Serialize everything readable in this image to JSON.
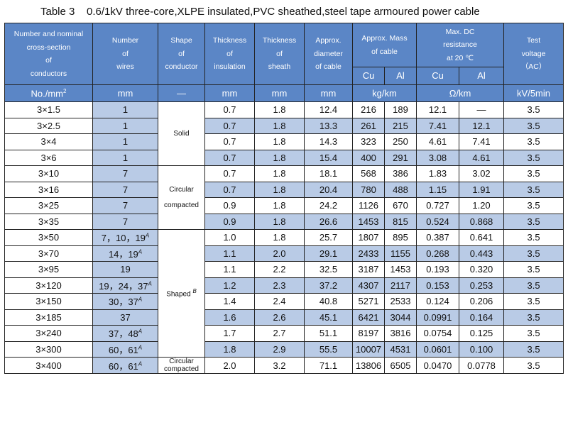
{
  "title": "Table 3    0.6/1kV three-core,XLPE insulated,PVC sheathed,steel tape armoured power cable",
  "headers": {
    "col1": "Number and nominal\ncross-section\nof\nconductors",
    "col2": "Number\nof\nwires",
    "col3": "Shape\nof\nconductor",
    "col4": "Thickness\nof\ninsulation",
    "col5": "Thickness\nof\nsheath",
    "col6": "Approx.\ndiameter\nof cable",
    "col7": "Approx. Mass\nof cable",
    "col8": "Max. DC\nresistance\nat 20 ℃",
    "col9": "Test\nvoltage\n（AC）",
    "cu": "Cu",
    "al": "Al",
    "cu2": "Cu",
    "al2": "Al"
  },
  "units": {
    "u1": "No./mm²",
    "u2": "mm",
    "u3": "—",
    "u4": "mm",
    "u5": "mm",
    "u6": "mm",
    "u7": "kg/km",
    "u8": "Ω/km",
    "u9": "kV/5min"
  },
  "shapes": {
    "solid": "Solid",
    "circular": "Circular\ncompacted",
    "shaped": "Shaped ",
    "shaped_sup": "B",
    "circular2": "Circular\ncompacted"
  },
  "rows": [
    {
      "size": "3×1.5",
      "wires": "1",
      "wsup": "",
      "ins": "0.7",
      "sheath": "1.8",
      "dia": "12.4",
      "cu": "216",
      "al": "189",
      "rcu": "12.1",
      "ral": "—",
      "v": "3.5"
    },
    {
      "size": "3×2.5",
      "wires": "1",
      "wsup": "",
      "ins": "0.7",
      "sheath": "1.8",
      "dia": "13.3",
      "cu": "261",
      "al": "215",
      "rcu": "7.41",
      "ral": "12.1",
      "v": "3.5"
    },
    {
      "size": "3×4",
      "wires": "1",
      "wsup": "",
      "ins": "0.7",
      "sheath": "1.8",
      "dia": "14.3",
      "cu": "323",
      "al": "250",
      "rcu": "4.61",
      "ral": "7.41",
      "v": "3.5"
    },
    {
      "size": "3×6",
      "wires": "1",
      "wsup": "",
      "ins": "0.7",
      "sheath": "1.8",
      "dia": "15.4",
      "cu": "400",
      "al": "291",
      "rcu": "3.08",
      "ral": "4.61",
      "v": "3.5"
    },
    {
      "size": "3×10",
      "wires": "7",
      "wsup": "",
      "ins": "0.7",
      "sheath": "1.8",
      "dia": "18.1",
      "cu": "568",
      "al": "386",
      "rcu": "1.83",
      "ral": "3.02",
      "v": "3.5"
    },
    {
      "size": "3×16",
      "wires": "7",
      "wsup": "",
      "ins": "0.7",
      "sheath": "1.8",
      "dia": "20.4",
      "cu": "780",
      "al": "488",
      "rcu": "1.15",
      "ral": "1.91",
      "v": "3.5"
    },
    {
      "size": "3×25",
      "wires": "7",
      "wsup": "",
      "ins": "0.9",
      "sheath": "1.8",
      "dia": "24.2",
      "cu": "1126",
      "al": "670",
      "rcu": "0.727",
      "ral": "1.20",
      "v": "3.5"
    },
    {
      "size": "3×35",
      "wires": "7",
      "wsup": "",
      "ins": "0.9",
      "sheath": "1.8",
      "dia": "26.6",
      "cu": "1453",
      "al": "815",
      "rcu": "0.524",
      "ral": "0.868",
      "v": "3.5"
    },
    {
      "size": "3×50",
      "wires": "7，10，19",
      "wsup": "A",
      "ins": "1.0",
      "sheath": "1.8",
      "dia": "25.7",
      "cu": "1807",
      "al": "895",
      "rcu": "0.387",
      "ral": "0.641",
      "v": "3.5"
    },
    {
      "size": "3×70",
      "wires": "14，19",
      "wsup": "A",
      "ins": "1.1",
      "sheath": "2.0",
      "dia": "29.1",
      "cu": "2433",
      "al": "1155",
      "rcu": "0.268",
      "ral": "0.443",
      "v": "3.5"
    },
    {
      "size": "3×95",
      "wires": "19",
      "wsup": "",
      "ins": "1.1",
      "sheath": "2.2",
      "dia": "32.5",
      "cu": "3187",
      "al": "1453",
      "rcu": "0.193",
      "ral": "0.320",
      "v": "3.5"
    },
    {
      "size": "3×120",
      "wires": "19，24，37",
      "wsup": "A",
      "ins": "1.2",
      "sheath": "2.3",
      "dia": "37.2",
      "cu": "4307",
      "al": "2117",
      "rcu": "0.153",
      "ral": "0.253",
      "v": "3.5"
    },
    {
      "size": "3×150",
      "wires": "30，37",
      "wsup": "A",
      "ins": "1.4",
      "sheath": "2.4",
      "dia": "40.8",
      "cu": "5271",
      "al": "2533",
      "rcu": "0.124",
      "ral": "0.206",
      "v": "3.5"
    },
    {
      "size": "3×185",
      "wires": "37",
      "wsup": "",
      "ins": "1.6",
      "sheath": "2.6",
      "dia": "45.1",
      "cu": "6421",
      "al": "3044",
      "rcu": "0.0991",
      "ral": "0.164",
      "v": "3.5"
    },
    {
      "size": "3×240",
      "wires": "37，48",
      "wsup": "A",
      "ins": "1.7",
      "sheath": "2.7",
      "dia": "51.1",
      "cu": "8197",
      "al": "3816",
      "rcu": "0.0754",
      "ral": "0.125",
      "v": "3.5"
    },
    {
      "size": "3×300",
      "wires": "60，61",
      "wsup": "A",
      "ins": "1.8",
      "sheath": "2.9",
      "dia": "55.5",
      "cu": "10007",
      "al": "4531",
      "rcu": "0.0601",
      "ral": "0.100",
      "v": "3.5"
    },
    {
      "size": "3×400",
      "wires": "60，61",
      "wsup": "A",
      "ins": "2.0",
      "sheath": "3.2",
      "dia": "71.1",
      "cu": "13806",
      "al": "6505",
      "rcu": "0.0470",
      "ral": "0.0778",
      "v": "3.5"
    }
  ]
}
